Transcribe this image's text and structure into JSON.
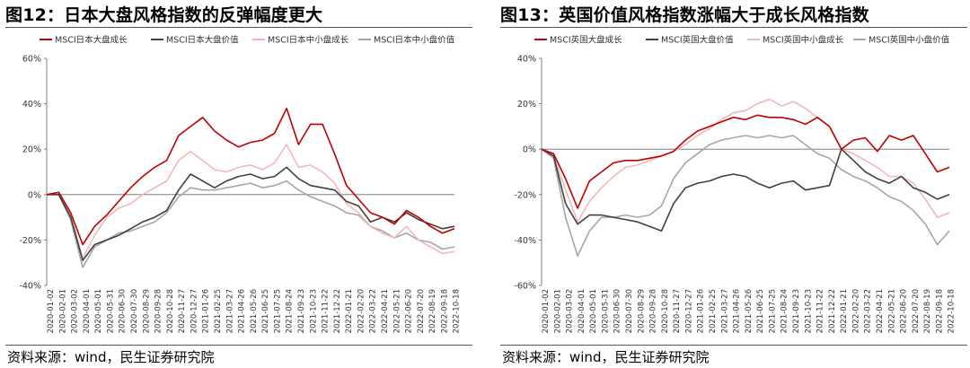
{
  "left": {
    "title": "图12：日本大盘风格指数的反弹幅度更大",
    "source": "资料来源：wind，民生证券研究院"
  },
  "right": {
    "title": "图13：英国价值风格指数涨幅大于成长风格指数",
    "source": "资料来源：wind，民生证券研究院"
  },
  "chart_data": [
    {
      "type": "line",
      "title": "图12：日本大盘风格指数的反弹幅度更大",
      "ylim": [
        -40,
        60
      ],
      "yticks": [
        -40,
        -20,
        0,
        20,
        40,
        60
      ],
      "ytick_labels": [
        "-40%",
        "-20%",
        "0%",
        "20%",
        "40%",
        "60%"
      ],
      "y_unit": "%",
      "grid": false,
      "legend": "top",
      "xtick_labels": [
        "2020-01-02",
        "2020-02-01",
        "2020-03-02",
        "2020-04-01",
        "2020-05-01",
        "2020-05-31",
        "2020-06-30",
        "2020-07-30",
        "2020-08-29",
        "2020-09-28",
        "2020-10-28",
        "2020-11-27",
        "2020-12-27",
        "2021-01-26",
        "2021-02-25",
        "2021-03-27",
        "2021-04-26",
        "2021-05-26",
        "2021-06-25",
        "2021-07-25",
        "2021-08-24",
        "2021-09-23",
        "2021-10-23",
        "2021-11-22",
        "2021-12-22",
        "2022-01-21",
        "2022-02-20",
        "2022-03-22",
        "2022-04-21",
        "2022-05-21",
        "2022-06-20",
        "2022-07-20",
        "2022-08-19",
        "2022-09-18",
        "2022-10-18"
      ],
      "x": [
        "2020-01",
        "2020-02",
        "2020-03",
        "2020-04",
        "2020-05",
        "2020-06",
        "2020-07",
        "2020-08",
        "2020-09",
        "2020-10",
        "2020-11",
        "2020-12",
        "2021-01",
        "2021-02",
        "2021-03",
        "2021-04",
        "2021-05",
        "2021-06",
        "2021-07",
        "2021-08",
        "2021-09",
        "2021-10",
        "2021-11",
        "2021-12",
        "2022-01",
        "2022-02",
        "2022-03",
        "2022-04",
        "2022-05",
        "2022-06",
        "2022-07",
        "2022-08",
        "2022-09",
        "2022-10",
        "2022-11"
      ],
      "series": [
        {
          "name": "MSCI日本大盘成长",
          "color": "#c00000",
          "values": [
            0,
            1,
            -8,
            -22,
            -14,
            -9,
            -3,
            3,
            8,
            12,
            15,
            26,
            30,
            34,
            28,
            24,
            21,
            23,
            24,
            27,
            38,
            22,
            31,
            31,
            18,
            4,
            -2,
            -8,
            -10,
            -13,
            -7,
            -10,
            -14,
            -17,
            -15
          ]
        },
        {
          "name": "MSCI日本大盘价值",
          "color": "#404040",
          "values": [
            0,
            0,
            -10,
            -29,
            -22,
            -20,
            -18,
            -15,
            -12,
            -10,
            -7,
            2,
            9,
            6,
            3,
            6,
            8,
            9,
            7,
            8,
            12,
            7,
            4,
            3,
            2,
            -3,
            -5,
            -12,
            -10,
            -12,
            -8,
            -11,
            -13,
            -15,
            -14
          ]
        },
        {
          "name": "MSCI日本中小盘成长",
          "color": "#f2b8b8",
          "values": [
            0,
            1,
            -9,
            -28,
            -18,
            -10,
            -6,
            -4,
            0,
            3,
            6,
            15,
            19,
            15,
            11,
            10,
            12,
            13,
            11,
            14,
            22,
            12,
            13,
            10,
            5,
            -4,
            -8,
            -14,
            -17,
            -19,
            -14,
            -20,
            -23,
            -26,
            -25
          ]
        },
        {
          "name": "MSCI日本中小盘价值",
          "color": "#a6a6a6",
          "values": [
            0,
            0,
            -11,
            -32,
            -23,
            -20,
            -17,
            -16,
            -14,
            -12,
            -8,
            -1,
            3,
            2,
            2,
            3,
            4,
            5,
            3,
            4,
            6,
            2,
            -1,
            -3,
            -5,
            -8,
            -9,
            -14,
            -16,
            -19,
            -17,
            -20,
            -21,
            -24,
            -23
          ]
        }
      ]
    },
    {
      "type": "line",
      "title": "图13：英国价值风格指数涨幅大于成长风格指数",
      "ylim": [
        -60,
        40
      ],
      "yticks": [
        -60,
        -40,
        -20,
        0,
        20,
        40
      ],
      "ytick_labels": [
        "-60%",
        "-40%",
        "-20%",
        "0%",
        "20%",
        "40%"
      ],
      "y_unit": "%",
      "grid": false,
      "legend": "top",
      "xtick_labels": [
        "2020-01-02",
        "2020-02-01",
        "2020-03-02",
        "2020-04-01",
        "2020-05-01",
        "2020-05-31",
        "2020-06-30",
        "2020-07-30",
        "2020-08-29",
        "2020-09-28",
        "2020-10-28",
        "2020-11-27",
        "2020-12-27",
        "2021-01-26",
        "2021-02-25",
        "2021-03-27",
        "2021-04-26",
        "2021-05-26",
        "2021-06-25",
        "2021-07-25",
        "2021-08-24",
        "2021-09-23",
        "2021-10-23",
        "2021-11-22",
        "2021-12-22",
        "2022-01-21",
        "2022-02-20",
        "2022-03-22",
        "2022-04-21",
        "2022-05-21",
        "2022-06-20",
        "2022-07-20",
        "2022-08-19",
        "2022-09-18",
        "2022-10-18"
      ],
      "x": [
        "2020-01",
        "2020-02",
        "2020-03",
        "2020-04",
        "2020-05",
        "2020-06",
        "2020-07",
        "2020-08",
        "2020-09",
        "2020-10",
        "2020-11",
        "2020-12",
        "2021-01",
        "2021-02",
        "2021-03",
        "2021-04",
        "2021-05",
        "2021-06",
        "2021-07",
        "2021-08",
        "2021-09",
        "2021-10",
        "2021-11",
        "2021-12",
        "2022-01",
        "2022-02",
        "2022-03",
        "2022-04",
        "2022-05",
        "2022-06",
        "2022-07",
        "2022-08",
        "2022-09",
        "2022-10",
        "2022-11"
      ],
      "series": [
        {
          "name": "MSCI英国大盘成长",
          "color": "#c00000",
          "values": [
            0,
            -2,
            -13,
            -26,
            -14,
            -10,
            -6,
            -5,
            -5,
            -4,
            -3,
            -1,
            4,
            8,
            10,
            12,
            14,
            13,
            15,
            14,
            14,
            13,
            11,
            14,
            10,
            0,
            4,
            5,
            -1,
            6,
            4,
            6,
            -2,
            -10,
            -8
          ]
        },
        {
          "name": "MSCI英国大盘价值",
          "color": "#404040",
          "values": [
            0,
            -3,
            -24,
            -33,
            -29,
            -29,
            -30,
            -31,
            -32,
            -34,
            -36,
            -24,
            -17,
            -15,
            -14,
            -12,
            -11,
            -12,
            -15,
            -17,
            -15,
            -14,
            -18,
            -17,
            -16,
            0,
            -5,
            -10,
            -13,
            -15,
            -12,
            -17,
            -19,
            -22,
            -20
          ]
        },
        {
          "name": "MSCI英国中小盘成长",
          "color": "#f2b8b8",
          "values": [
            0,
            -3,
            -18,
            -32,
            -23,
            -17,
            -12,
            -8,
            -7,
            -5,
            -3,
            -1,
            2,
            6,
            9,
            13,
            16,
            17,
            20,
            22,
            19,
            21,
            18,
            14,
            10,
            0,
            -2,
            -5,
            -8,
            -12,
            -12,
            -15,
            -22,
            -30,
            -28
          ]
        },
        {
          "name": "MSCI英国中小盘价值",
          "color": "#a6a6a6",
          "values": [
            0,
            -4,
            -30,
            -47,
            -36,
            -30,
            -30,
            -29,
            -30,
            -29,
            -25,
            -13,
            -6,
            -2,
            2,
            4,
            5,
            6,
            5,
            6,
            5,
            6,
            2,
            -2,
            -4,
            -9,
            -12,
            -14,
            -17,
            -21,
            -23,
            -27,
            -33,
            -42,
            -36
          ]
        }
      ]
    }
  ]
}
